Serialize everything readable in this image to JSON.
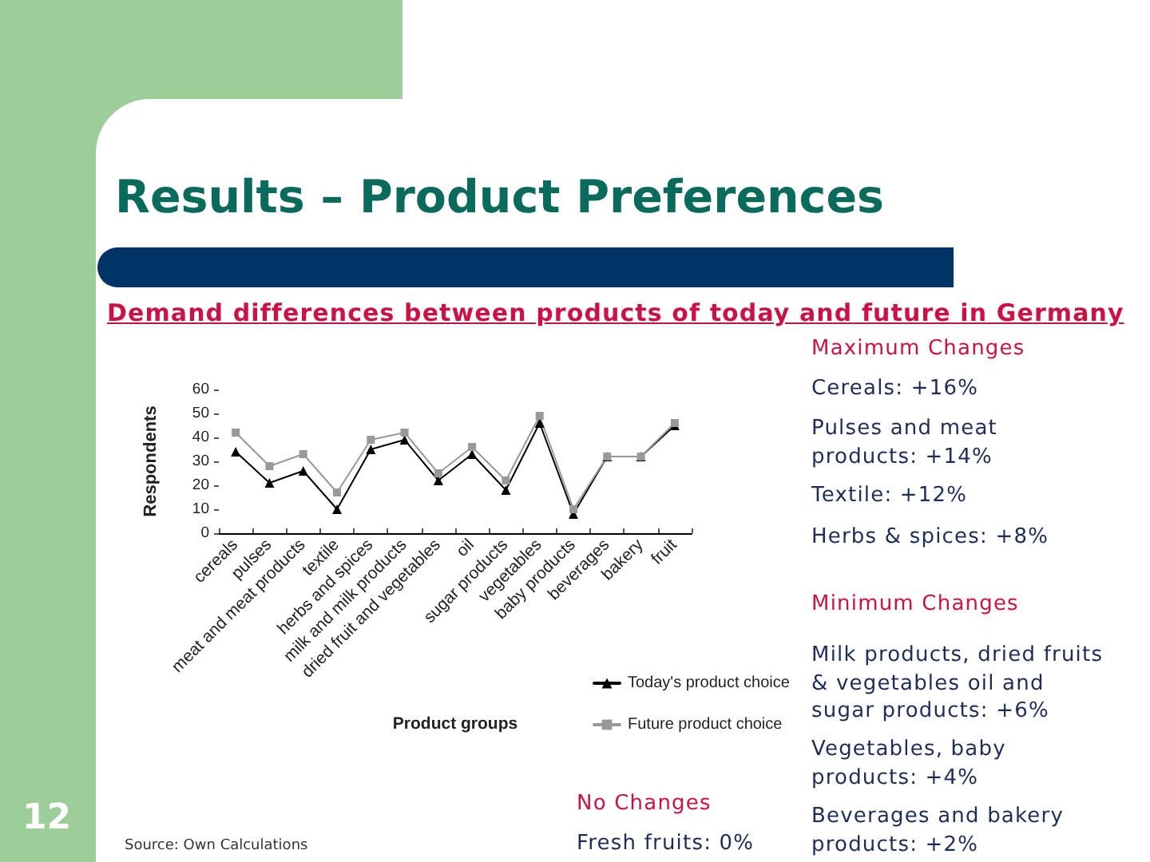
{
  "chart_data": {
    "type": "line",
    "title": "Results – Product Preferences",
    "subtitle": "Demand differences between products of today and future in Germany",
    "xlabel": "Product groups",
    "ylabel": "Respondents",
    "categories": [
      "cereals",
      "pulses",
      "meat and meat products",
      "textile",
      "herbs and spices",
      "milk and milk products",
      "dried fruit and vegetables",
      "oil",
      "sugar products",
      "vegetables",
      "baby products",
      "beverages",
      "bakery",
      "fruit"
    ],
    "series": [
      {
        "name": "Today's product choice",
        "color": "#000000",
        "marker": "triangle",
        "values": [
          34,
          21,
          26,
          10,
          35,
          39,
          22,
          33,
          18,
          46,
          8,
          32,
          32,
          45
        ]
      },
      {
        "name": "Future product choice",
        "color": "#999999",
        "marker": "square",
        "values": [
          42,
          28,
          33,
          17,
          39,
          42,
          25,
          36,
          22,
          49,
          10,
          32,
          32,
          46
        ]
      }
    ],
    "ylim": [
      0,
      60
    ],
    "yticks": [
      0,
      10,
      20,
      30,
      40,
      50,
      60
    ],
    "grid": false,
    "legend": "bottom right",
    "line_style": "solid",
    "annotations": [
      "Maximum Changes",
      "Cereals: +16%",
      "Pulses and meat products: +14%",
      "Textile: +12%",
      "Herbs & spices: +8%",
      "Minimum Changes",
      "Milk products, dried fruits & vegetables oil and sugar products: +6%",
      "Vegetables, baby products: +4%",
      "Beverages and bakery products: +2%",
      "No Changes",
      "Fresh fruits: 0%",
      "Source: Own Calculations",
      "12"
    ]
  }
}
